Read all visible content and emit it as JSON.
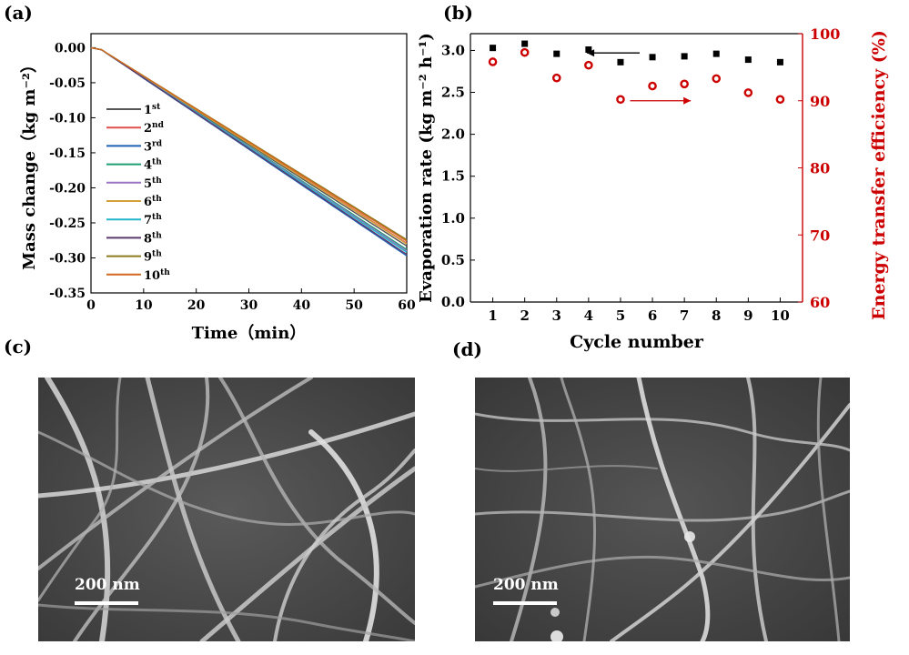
{
  "panels": {
    "a": "(a)",
    "b": "(b)",
    "c": "(c)",
    "d": "(d)"
  },
  "chart_data": [
    {
      "type": "line",
      "xlabel": "Time（min）",
      "ylabel": "Mass change（kg m⁻²）",
      "xlim": [
        0,
        60
      ],
      "ylim": [
        -0.35,
        0.02
      ],
      "xticks": [
        "0",
        "10",
        "20",
        "30",
        "40",
        "50",
        "60"
      ],
      "yticks": [
        "0.00",
        "-0.05",
        "-0.10",
        "-0.15",
        "-0.20",
        "-0.25",
        "-0.30",
        "-0.35"
      ],
      "legend_position": "left",
      "series": [
        {
          "name": "1st",
          "color": "#555555",
          "x": [
            0,
            2,
            60
          ],
          "y": [
            0.0,
            -0.003,
            -0.283
          ]
        },
        {
          "name": "2nd",
          "color": "#e0504a",
          "x": [
            0,
            2,
            60
          ],
          "y": [
            0.0,
            -0.003,
            -0.279
          ]
        },
        {
          "name": "3rd",
          "color": "#1f5fb4",
          "x": [
            0,
            2,
            60
          ],
          "y": [
            0.0,
            -0.003,
            -0.297
          ]
        },
        {
          "name": "4th",
          "color": "#1d9e74",
          "x": [
            0,
            2,
            60
          ],
          "y": [
            0.0,
            -0.003,
            -0.288
          ]
        },
        {
          "name": "5th",
          "color": "#9b72c6",
          "x": [
            0,
            2,
            60
          ],
          "y": [
            0.0,
            -0.003,
            -0.29
          ]
        },
        {
          "name": "6th",
          "color": "#d4a03a",
          "x": [
            0,
            2,
            60
          ],
          "y": [
            0.0,
            -0.003,
            -0.28
          ]
        },
        {
          "name": "7th",
          "color": "#22b6c8",
          "x": [
            0,
            2,
            60
          ],
          "y": [
            0.0,
            -0.003,
            -0.292
          ]
        },
        {
          "name": "8th",
          "color": "#5b3a6e",
          "x": [
            0,
            2,
            60
          ],
          "y": [
            0.0,
            -0.003,
            -0.295
          ]
        },
        {
          "name": "9th",
          "color": "#8c7a1e",
          "x": [
            0,
            2,
            60
          ],
          "y": [
            0.0,
            -0.003,
            -0.274
          ]
        },
        {
          "name": "10th",
          "color": "#d2691e",
          "x": [
            0,
            2,
            60
          ],
          "y": [
            0.0,
            -0.003,
            -0.276
          ]
        }
      ]
    },
    {
      "type": "scatter",
      "xlabel": "Cycle number",
      "ylabel": "Evaporation rate (kg m⁻² h⁻¹)",
      "ylabel_right": "Energy transfer efficiency (%)",
      "xlim": [
        0.3,
        10.7
      ],
      "ylim": [
        0,
        3.2
      ],
      "ylim_right": [
        60,
        100
      ],
      "xticks": [
        "1",
        "2",
        "3",
        "4",
        "5",
        "6",
        "7",
        "8",
        "9",
        "10"
      ],
      "yticks": [
        "0.0",
        "0.5",
        "1.0",
        "1.5",
        "2.0",
        "2.5",
        "3.0"
      ],
      "yticks_right": [
        "60",
        "70",
        "80",
        "90",
        "100"
      ],
      "right_axis_color": "#cc0000",
      "series": [
        {
          "name": "",
          "axis": "left",
          "marker": "square",
          "color": "#000000",
          "x": [
            1,
            2,
            3,
            4,
            5,
            6,
            7,
            8,
            9,
            10
          ],
          "y": [
            3.03,
            3.08,
            2.96,
            3.01,
            2.86,
            2.92,
            2.93,
            2.96,
            2.89,
            2.86
          ]
        },
        {
          "name": "",
          "axis": "right",
          "marker": "circle",
          "color": "#cc0000",
          "x": [
            1,
            2,
            3,
            4,
            5,
            6,
            7,
            8,
            9,
            10
          ],
          "y": [
            95.8,
            97.2,
            93.4,
            95.3,
            90.2,
            92.2,
            92.5,
            93.3,
            91.2,
            90.2
          ]
        }
      ]
    }
  ],
  "sem_c": {
    "scalebar": "200 nm"
  },
  "sem_d": {
    "scalebar": "200 nm"
  }
}
